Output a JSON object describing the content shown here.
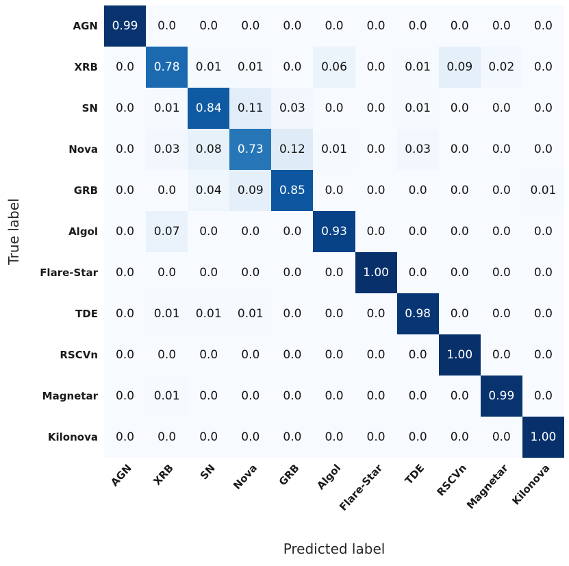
{
  "chart_data": {
    "type": "heatmap",
    "title": "",
    "xlabel": "Predicted label",
    "ylabel": "True label",
    "colormap": "Blues",
    "vmin": 0,
    "vmax": 1,
    "legend_position": "none",
    "grid": false,
    "categories": [
      "AGN",
      "XRB",
      "SN",
      "Nova",
      "GRB",
      "Algol",
      "Flare-Star",
      "TDE",
      "RSCVn",
      "Magnetar",
      "Kilonova"
    ],
    "rows": [
      {
        "label": "AGN",
        "values": [
          0.99,
          0,
          0,
          0,
          0,
          0,
          0,
          0,
          0,
          0,
          0
        ],
        "display": [
          "0.99",
          "0.0",
          "0.0",
          "0.0",
          "0.0",
          "0.0",
          "0.0",
          "0.0",
          "0.0",
          "0.0",
          "0.0"
        ]
      },
      {
        "label": "XRB",
        "values": [
          0,
          0.78,
          0.01,
          0.01,
          0,
          0.06,
          0,
          0.01,
          0.09,
          0.02,
          0
        ],
        "display": [
          "0.0",
          "0.78",
          "0.01",
          "0.01",
          "0.0",
          "0.06",
          "0.0",
          "0.01",
          "0.09",
          "0.02",
          "0.0"
        ]
      },
      {
        "label": "SN",
        "values": [
          0,
          0.01,
          0.84,
          0.11,
          0.03,
          0,
          0,
          0.01,
          0,
          0,
          0
        ],
        "display": [
          "0.0",
          "0.01",
          "0.84",
          "0.11",
          "0.03",
          "0.0",
          "0.0",
          "0.01",
          "0.0",
          "0.0",
          "0.0"
        ]
      },
      {
        "label": "Nova",
        "values": [
          0,
          0.03,
          0.08,
          0.73,
          0.12,
          0.01,
          0,
          0.03,
          0,
          0,
          0
        ],
        "display": [
          "0.0",
          "0.03",
          "0.08",
          "0.73",
          "0.12",
          "0.01",
          "0.0",
          "0.03",
          "0.0",
          "0.0",
          "0.0"
        ]
      },
      {
        "label": "GRB",
        "values": [
          0,
          0,
          0.04,
          0.09,
          0.85,
          0,
          0,
          0,
          0,
          0,
          0.01
        ],
        "display": [
          "0.0",
          "0.0",
          "0.04",
          "0.09",
          "0.85",
          "0.0",
          "0.0",
          "0.0",
          "0.0",
          "0.0",
          "0.01"
        ]
      },
      {
        "label": "Algol",
        "values": [
          0,
          0.07,
          0,
          0,
          0,
          0.93,
          0,
          0,
          0,
          0,
          0
        ],
        "display": [
          "0.0",
          "0.07",
          "0.0",
          "0.0",
          "0.0",
          "0.93",
          "0.0",
          "0.0",
          "0.0",
          "0.0",
          "0.0"
        ]
      },
      {
        "label": "Flare-Star",
        "values": [
          0,
          0,
          0,
          0,
          0,
          0,
          1.0,
          0,
          0,
          0,
          0
        ],
        "display": [
          "0.0",
          "0.0",
          "0.0",
          "0.0",
          "0.0",
          "0.0",
          "1.00",
          "0.0",
          "0.0",
          "0.0",
          "0.0"
        ]
      },
      {
        "label": "TDE",
        "values": [
          0,
          0.01,
          0.01,
          0.01,
          0,
          0,
          0,
          0.98,
          0,
          0,
          0
        ],
        "display": [
          "0.0",
          "0.01",
          "0.01",
          "0.01",
          "0.0",
          "0.0",
          "0.0",
          "0.98",
          "0.0",
          "0.0",
          "0.0"
        ]
      },
      {
        "label": "RSCVn",
        "values": [
          0,
          0,
          0,
          0,
          0,
          0,
          0,
          0,
          1.0,
          0,
          0
        ],
        "display": [
          "0.0",
          "0.0",
          "0.0",
          "0.0",
          "0.0",
          "0.0",
          "0.0",
          "0.0",
          "1.00",
          "0.0",
          "0.0"
        ]
      },
      {
        "label": "Magnetar",
        "values": [
          0,
          0.01,
          0,
          0,
          0,
          0,
          0,
          0,
          0,
          0.99,
          0
        ],
        "display": [
          "0.0",
          "0.01",
          "0.0",
          "0.0",
          "0.0",
          "0.0",
          "0.0",
          "0.0",
          "0.0",
          "0.99",
          "0.0"
        ]
      },
      {
        "label": "Kilonova",
        "values": [
          0,
          0,
          0,
          0,
          0,
          0,
          0,
          0,
          0,
          0,
          1.0
        ],
        "display": [
          "0.0",
          "0.0",
          "0.0",
          "0.0",
          "0.0",
          "0.0",
          "0.0",
          "0.0",
          "0.0",
          "0.0",
          "1.00"
        ]
      }
    ],
    "colors": {
      "cmap_low": "#f7fbff",
      "cmap_high": "#08306b",
      "cell_text_dark": "#151515",
      "cell_text_light": "#ffffff",
      "tick_label": "#1a1a1a",
      "axis_title": "#262626"
    }
  }
}
